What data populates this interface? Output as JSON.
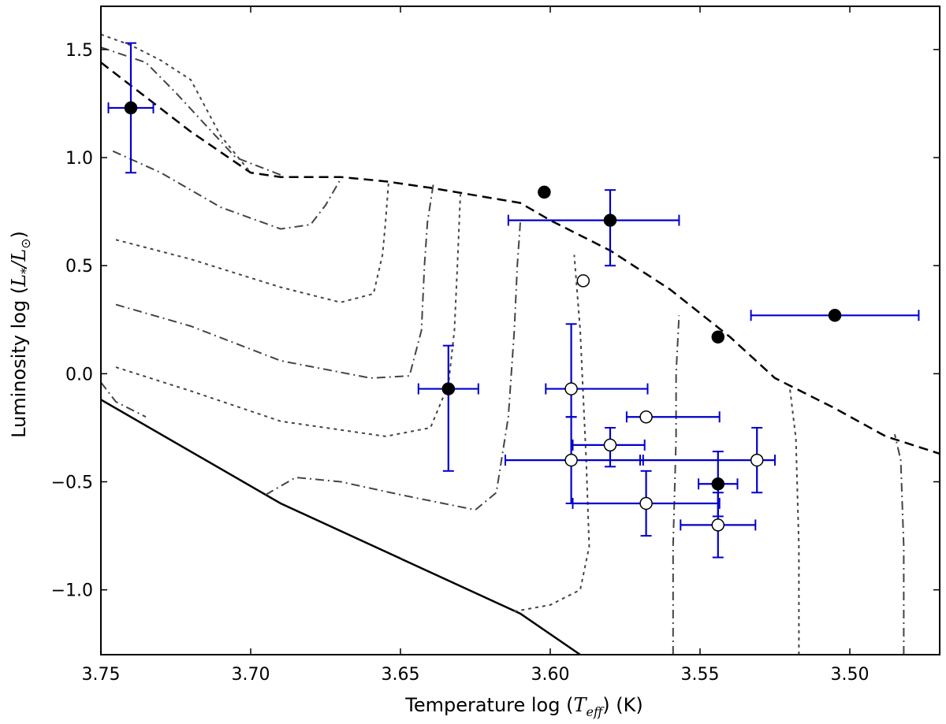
{
  "chart_data": {
    "type": "scatter",
    "title": "",
    "xlabel": {
      "prefix": "Temperature    log (",
      "symbol": "T",
      "subscript": "eff",
      "suffix": ")    (K)"
    },
    "ylabel": {
      "prefix": "Luminosity    log (",
      "symbol_num": "L",
      "sub_num": "*",
      "slash": "/",
      "symbol_den": "L",
      "sub_den": "⊙",
      "suffix": ")"
    },
    "xlim": [
      3.75,
      3.47
    ],
    "ylim": [
      -1.3,
      1.7
    ],
    "x_inverted": true,
    "xticks": [
      3.75,
      3.7,
      3.65,
      3.6,
      3.55,
      3.5
    ],
    "xtick_labels": [
      "3.75",
      "3.70",
      "3.65",
      "3.60",
      "3.55",
      "3.50"
    ],
    "yticks": [
      1.5,
      1.0,
      0.5,
      0.0,
      -0.5,
      -1.0
    ],
    "ytick_labels": [
      "1.5",
      "1.0",
      "0.5",
      "0.0",
      "−0.5",
      "−1.0"
    ],
    "grid": false,
    "colors": {
      "filled_marker": "#000000",
      "open_marker_fill": "#ffffff",
      "errorbar": "#0000cc",
      "isochrone": "#444444",
      "curve": "#000000"
    },
    "points": [
      {
        "name": "filled-1",
        "x": 3.74,
        "y": 1.23,
        "filled": true,
        "xerr": [
          0.0075,
          0.0075
        ],
        "yerr": [
          0.3,
          0.3
        ]
      },
      {
        "name": "filled-2",
        "x": 3.634,
        "y": -0.07,
        "filled": true,
        "xerr": [
          0.01,
          0.01
        ],
        "yerr": [
          0.38,
          0.2
        ]
      },
      {
        "name": "filled-3",
        "x": 3.602,
        "y": 0.84,
        "filled": true,
        "xerr": null,
        "yerr": null
      },
      {
        "name": "filled-4",
        "x": 3.58,
        "y": 0.71,
        "filled": true,
        "xerr": [
          0.034,
          0.023
        ],
        "yerr": [
          0.21,
          0.14
        ]
      },
      {
        "name": "filled-5",
        "x": 3.544,
        "y": 0.17,
        "filled": true,
        "xerr": null,
        "yerr": null
      },
      {
        "name": "filled-6",
        "x": 3.505,
        "y": 0.27,
        "filled": true,
        "xerr": [
          0.028,
          0.028
        ],
        "yerr": null
      },
      {
        "name": "filled-7",
        "x": 3.544,
        "y": -0.51,
        "filled": true,
        "xerr": [
          0.0065,
          0.0065
        ],
        "yerr": [
          0.15,
          0.15
        ]
      },
      {
        "name": "open-1",
        "x": 3.589,
        "y": 0.43,
        "filled": false,
        "xerr": null,
        "yerr": null
      },
      {
        "name": "open-2",
        "x": 3.593,
        "y": -0.07,
        "filled": false,
        "xerr": [
          0.0085,
          0.0255
        ],
        "yerr": [
          0.13,
          0.3
        ]
      },
      {
        "name": "open-3",
        "x": 3.568,
        "y": -0.2,
        "filled": false,
        "xerr": [
          0.0065,
          0.0245
        ],
        "yerr": null
      },
      {
        "name": "open-4",
        "x": 3.58,
        "y": -0.33,
        "filled": false,
        "xerr": [
          0.0125,
          0.0115
        ],
        "yerr": [
          0.1,
          0.08
        ]
      },
      {
        "name": "open-5",
        "x": 3.593,
        "y": -0.4,
        "filled": false,
        "xerr": [
          0.022,
          0.024
        ],
        "yerr": [
          0.2,
          0.2
        ]
      },
      {
        "name": "open-6",
        "x": 3.531,
        "y": -0.4,
        "filled": false,
        "xerr": [
          0.039,
          0.006
        ],
        "yerr": [
          0.15,
          0.15
        ]
      },
      {
        "name": "open-7",
        "x": 3.568,
        "y": -0.6,
        "filled": false,
        "xerr": [
          0.0245,
          0.0245
        ],
        "yerr": [
          0.15,
          0.15
        ]
      },
      {
        "name": "open-8",
        "x": 3.544,
        "y": -0.7,
        "filled": false,
        "xerr": [
          0.0125,
          0.0125
        ],
        "yerr": [
          0.15,
          0.15
        ]
      }
    ],
    "lines": [
      {
        "name": "birthline-dashed",
        "style": "dashed",
        "width": 2.5,
        "points": [
          [
            3.75,
            1.44
          ],
          [
            3.72,
            1.12
          ],
          [
            3.7,
            0.93
          ],
          [
            3.69,
            0.91
          ],
          [
            3.67,
            0.91
          ],
          [
            3.655,
            0.89
          ],
          [
            3.64,
            0.86
          ],
          [
            3.61,
            0.79
          ],
          [
            3.6,
            0.71
          ],
          [
            3.58,
            0.57
          ],
          [
            3.56,
            0.39
          ],
          [
            3.54,
            0.17
          ],
          [
            3.525,
            -0.02
          ],
          [
            3.505,
            -0.16
          ],
          [
            3.488,
            -0.29
          ],
          [
            3.47,
            -0.37
          ]
        ]
      },
      {
        "name": "zams-solid",
        "style": "solid",
        "width": 2.5,
        "points": [
          [
            3.75,
            -0.12
          ],
          [
            3.69,
            -0.6
          ],
          [
            3.61,
            -1.11
          ],
          [
            3.59,
            -1.3
          ]
        ]
      },
      {
        "name": "isochrone-1",
        "style": "dotted",
        "width": 2,
        "points": [
          [
            3.75,
            1.57
          ],
          [
            3.74,
            1.52
          ],
          [
            3.73,
            1.45
          ],
          [
            3.72,
            1.36
          ],
          [
            3.715,
            1.23
          ],
          [
            3.71,
            1.1
          ],
          [
            3.7,
            0.93
          ]
        ]
      },
      {
        "name": "isochrone-2",
        "style": "dashdot",
        "width": 2,
        "points": [
          [
            3.75,
            1.51
          ],
          [
            3.735,
            1.44
          ],
          [
            3.725,
            1.3
          ],
          [
            3.715,
            1.15
          ],
          [
            3.705,
            1.0
          ],
          [
            3.69,
            0.92
          ]
        ]
      },
      {
        "name": "isochrone-3",
        "style": "dashdot",
        "width": 2,
        "points": [
          [
            3.746,
            1.03
          ],
          [
            3.73,
            0.93
          ],
          [
            3.71,
            0.77
          ],
          [
            3.69,
            0.67
          ],
          [
            3.68,
            0.69
          ],
          [
            3.675,
            0.78
          ],
          [
            3.67,
            0.9
          ]
        ]
      },
      {
        "name": "isochrone-4",
        "style": "dotted",
        "width": 2,
        "points": [
          [
            3.745,
            0.62
          ],
          [
            3.72,
            0.53
          ],
          [
            3.69,
            0.4
          ],
          [
            3.67,
            0.33
          ],
          [
            3.659,
            0.37
          ],
          [
            3.656,
            0.55
          ],
          [
            3.655,
            0.7
          ],
          [
            3.654,
            0.88
          ]
        ]
      },
      {
        "name": "isochrone-5",
        "style": "dashdot",
        "width": 2,
        "points": [
          [
            3.745,
            0.32
          ],
          [
            3.72,
            0.22
          ],
          [
            3.69,
            0.06
          ],
          [
            3.66,
            -0.02
          ],
          [
            3.647,
            -0.01
          ],
          [
            3.643,
            0.2
          ],
          [
            3.642,
            0.5
          ],
          [
            3.641,
            0.7
          ],
          [
            3.639,
            0.88
          ]
        ]
      },
      {
        "name": "isochrone-6",
        "style": "dotted",
        "width": 2,
        "points": [
          [
            3.745,
            0.03
          ],
          [
            3.72,
            -0.08
          ],
          [
            3.69,
            -0.22
          ],
          [
            3.655,
            -0.29
          ],
          [
            3.64,
            -0.25
          ],
          [
            3.634,
            -0.05
          ],
          [
            3.632,
            0.2
          ],
          [
            3.631,
            0.5
          ],
          [
            3.63,
            0.83
          ]
        ]
      },
      {
        "name": "isochrone-7",
        "style": "dashdot",
        "width": 2,
        "points": [
          [
            3.75,
            -0.04
          ],
          [
            3.745,
            -0.13
          ],
          [
            3.735,
            -0.2
          ]
        ]
      },
      {
        "name": "isochrone-8",
        "style": "dashdot",
        "width": 2,
        "points": [
          [
            3.695,
            -0.56
          ],
          [
            3.685,
            -0.48
          ],
          [
            3.67,
            -0.5
          ],
          [
            3.65,
            -0.56
          ],
          [
            3.625,
            -0.63
          ],
          [
            3.618,
            -0.55
          ],
          [
            3.614,
            -0.2
          ],
          [
            3.612,
            0.2
          ],
          [
            3.611,
            0.5
          ],
          [
            3.61,
            0.7
          ]
        ]
      },
      {
        "name": "isochrone-9",
        "style": "dotted",
        "width": 2,
        "points": [
          [
            3.612,
            -1.1
          ],
          [
            3.6,
            -1.07
          ],
          [
            3.59,
            -1.0
          ],
          [
            3.587,
            -0.8
          ],
          [
            3.588,
            -0.4
          ],
          [
            3.589,
            -0.1
          ],
          [
            3.59,
            0.2
          ],
          [
            3.592,
            0.55
          ]
        ]
      },
      {
        "name": "isochrone-10",
        "style": "dashdot",
        "width": 2,
        "points": [
          [
            3.559,
            -1.3
          ],
          [
            3.559,
            -0.8
          ],
          [
            3.558,
            -0.3
          ],
          [
            3.558,
            0.0
          ],
          [
            3.557,
            0.27
          ]
        ]
      },
      {
        "name": "isochrone-11",
        "style": "dotted",
        "width": 2,
        "points": [
          [
            3.517,
            -1.3
          ],
          [
            3.517,
            -0.8
          ],
          [
            3.518,
            -0.3
          ],
          [
            3.52,
            -0.07
          ]
        ]
      },
      {
        "name": "isochrone-12",
        "style": "dashdot",
        "width": 2,
        "points": [
          [
            3.482,
            -1.3
          ],
          [
            3.482,
            -0.8
          ],
          [
            3.483,
            -0.4
          ],
          [
            3.485,
            -0.28
          ]
        ]
      }
    ]
  }
}
